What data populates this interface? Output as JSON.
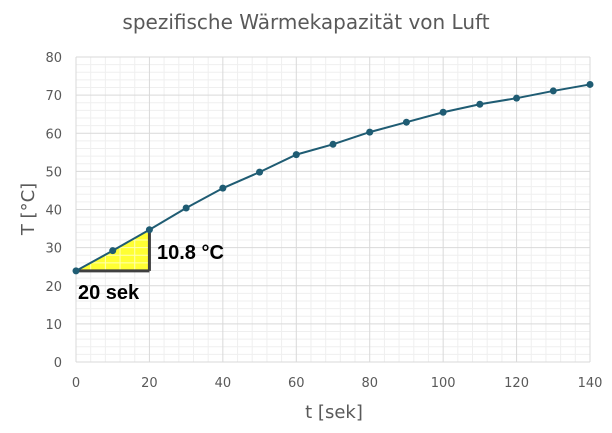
{
  "chart_data": {
    "type": "line",
    "title": "spezifische Wärmekapazität von Luft",
    "xlabel": "t [sek]",
    "ylabel": "T [°C]",
    "xlim": [
      0,
      140
    ],
    "ylim": [
      0,
      80
    ],
    "x_ticks": [
      0,
      20,
      40,
      60,
      80,
      100,
      120,
      140
    ],
    "y_ticks": [
      0,
      10,
      20,
      30,
      40,
      50,
      60,
      70,
      80
    ],
    "grid": true,
    "series": [
      {
        "color": "#1f5c73",
        "x": [
          0,
          10,
          20,
          30,
          40,
          50,
          60,
          70,
          80,
          90,
          100,
          110,
          120,
          130,
          140
        ],
        "y": [
          23.9,
          29.2,
          34.7,
          40.4,
          45.6,
          49.8,
          54.4,
          57.1,
          60.3,
          62.9,
          65.5,
          67.6,
          69.2,
          71.1,
          72.8
        ]
      }
    ],
    "annotations": {
      "triangle": {
        "x0": 0,
        "x1": 20,
        "y0": 23.9,
        "y1": 34.7,
        "fill": "#ffff33"
      },
      "delta_y_label": "10.8 °C",
      "delta_x_label": "20 sek"
    },
    "colors": {
      "line": "#1f5c73",
      "grid_major": "#d9d9d9",
      "grid_minor": "#efefef",
      "triangle_fill": "#ffff33"
    }
  }
}
